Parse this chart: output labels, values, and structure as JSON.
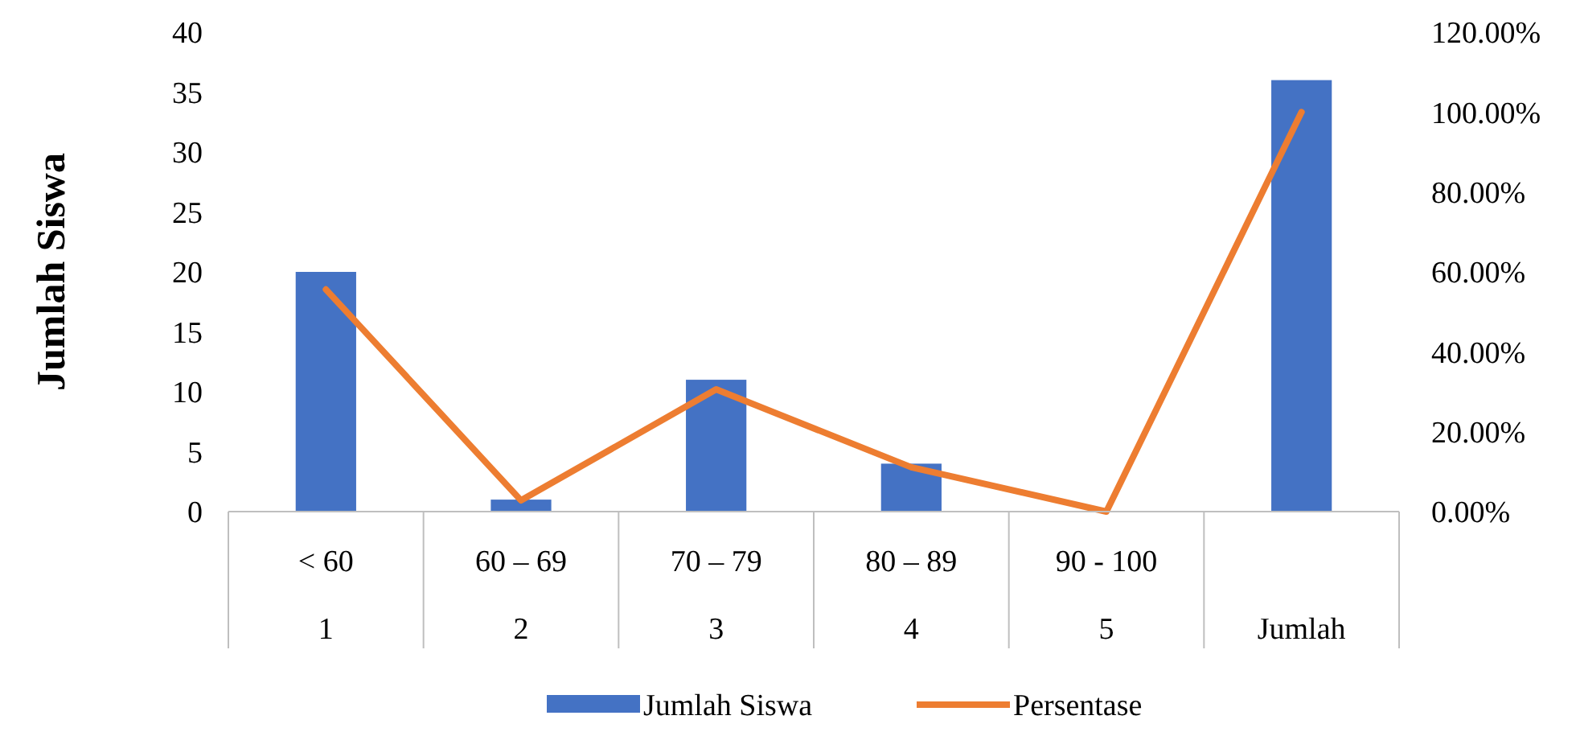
{
  "chart_data": {
    "type": "bar",
    "ylabel": "Jumlah Siswa",
    "categories": [
      "< 60\n1",
      "60 – 69\n2",
      "70 – 79\n3",
      "80 – 89\n4",
      "90 - 100\n5",
      "Jumlah"
    ],
    "series": [
      {
        "name": "Jumlah Siswa",
        "color": "#4472c4",
        "values": [
          20,
          1,
          11,
          4,
          0,
          36
        ]
      },
      {
        "name": "Persentase",
        "type": "line",
        "axis": "y2",
        "color": "#ed7d31",
        "values": [
          55.6,
          2.8,
          30.6,
          11.1,
          0,
          100
        ]
      }
    ],
    "ylim": [
      0,
      40
    ],
    "yticks": [
      0,
      5,
      10,
      15,
      20,
      25,
      30,
      35,
      40
    ],
    "y2lim": [
      0,
      120
    ],
    "y2ticks": [
      {
        "value": 0,
        "label": "0.00%"
      },
      {
        "value": 20,
        "label": "20.00%"
      },
      {
        "value": 40,
        "label": "40.00%"
      },
      {
        "value": 60,
        "label": "60.00%"
      },
      {
        "value": 80,
        "label": "80.00%"
      },
      {
        "value": 100,
        "label": "100.00%"
      },
      {
        "value": 120,
        "label": "120.00%"
      }
    ],
    "legend": "bottom",
    "marker": "none",
    "line_style": "solid"
  }
}
